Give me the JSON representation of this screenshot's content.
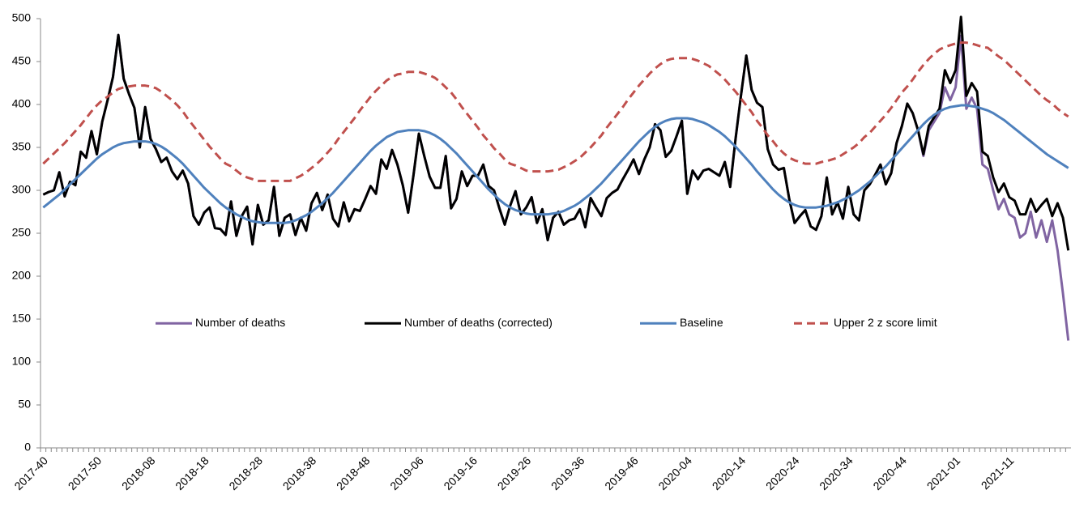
{
  "chart_data": {
    "type": "line",
    "categories": [
      "2017-40",
      null,
      null,
      null,
      null,
      null,
      null,
      null,
      null,
      null,
      "2017-50",
      null,
      null,
      null,
      null,
      null,
      null,
      null,
      null,
      null,
      "2018-08",
      null,
      null,
      null,
      null,
      null,
      null,
      null,
      null,
      null,
      "2018-18",
      null,
      null,
      null,
      null,
      null,
      null,
      null,
      null,
      null,
      "2018-28",
      null,
      null,
      null,
      null,
      null,
      null,
      null,
      null,
      null,
      "2018-38",
      null,
      null,
      null,
      null,
      null,
      null,
      null,
      null,
      null,
      "2018-48",
      null,
      null,
      null,
      null,
      null,
      null,
      null,
      null,
      null,
      "2019-06",
      null,
      null,
      null,
      null,
      null,
      null,
      null,
      null,
      null,
      "2019-16",
      null,
      null,
      null,
      null,
      null,
      null,
      null,
      null,
      null,
      "2019-26",
      null,
      null,
      null,
      null,
      null,
      null,
      null,
      null,
      null,
      "2019-36",
      null,
      null,
      null,
      null,
      null,
      null,
      null,
      null,
      null,
      "2019-46",
      null,
      null,
      null,
      null,
      null,
      null,
      null,
      null,
      null,
      "2020-04",
      null,
      null,
      null,
      null,
      null,
      null,
      null,
      null,
      null,
      "2020-14",
      null,
      null,
      null,
      null,
      null,
      null,
      null,
      null,
      null,
      "2020-24",
      null,
      null,
      null,
      null,
      null,
      null,
      null,
      null,
      null,
      "2020-34",
      null,
      null,
      null,
      null,
      null,
      null,
      null,
      null,
      null,
      "2020-44",
      null,
      null,
      null,
      null,
      null,
      null,
      null,
      null,
      null,
      "2021-01",
      null,
      null,
      null,
      null,
      null,
      null,
      null,
      null,
      null,
      "2021-11",
      null,
      null,
      null,
      null,
      null,
      null,
      null,
      null,
      null,
      null,
      null
    ],
    "series": [
      {
        "name": "Number of deaths",
        "color": "#8064a2",
        "style": "solid",
        "values": [
          295,
          298,
          300,
          321,
          293,
          310,
          306,
          345,
          338,
          369,
          342,
          380,
          405,
          432,
          481,
          430,
          412,
          396,
          350,
          397,
          360,
          348,
          333,
          338,
          322,
          313,
          323,
          308,
          270,
          260,
          274,
          280,
          256,
          255,
          248,
          287,
          247,
          270,
          281,
          237,
          283,
          260,
          265,
          304,
          247,
          268,
          272,
          248,
          268,
          253,
          285,
          297,
          277,
          295,
          267,
          258,
          286,
          264,
          278,
          276,
          290,
          305,
          296,
          336,
          325,
          347,
          330,
          306,
          274,
          318,
          366,
          340,
          316,
          303,
          303,
          340,
          279,
          290,
          322,
          305,
          317,
          317,
          330,
          305,
          300,
          279,
          260,
          282,
          299,
          272,
          280,
          292,
          262,
          278,
          242,
          268,
          275,
          260,
          265,
          267,
          278,
          257,
          291,
          280,
          270,
          291,
          297,
          301,
          313,
          324,
          336,
          319,
          336,
          350,
          377,
          370,
          339,
          346,
          363,
          381,
          296,
          323,
          313,
          323,
          325,
          321,
          317,
          333,
          304,
          360,
          410,
          457,
          417,
          402,
          397,
          348,
          330,
          324,
          326,
          290,
          262,
          270,
          277,
          258,
          254,
          270,
          315,
          272,
          286,
          267,
          304,
          272,
          265,
          300,
          307,
          318,
          330,
          307,
          320,
          355,
          375,
          401,
          390,
          370,
          340,
          370,
          380,
          390,
          420,
          405,
          420,
          480,
          395,
          408,
          395,
          330,
          325,
          300,
          278,
          290,
          272,
          268,
          245,
          250,
          275,
          245,
          265,
          240,
          265,
          230,
          180,
          125
        ]
      },
      {
        "name": "Number of deaths (corrected)",
        "color": "#000000",
        "style": "solid",
        "values": [
          295,
          298,
          300,
          321,
          293,
          310,
          306,
          345,
          338,
          369,
          342,
          380,
          405,
          432,
          481,
          430,
          412,
          396,
          350,
          397,
          360,
          348,
          333,
          338,
          322,
          313,
          323,
          308,
          270,
          260,
          274,
          280,
          256,
          255,
          248,
          287,
          247,
          270,
          281,
          237,
          283,
          260,
          265,
          304,
          247,
          268,
          272,
          248,
          268,
          253,
          285,
          297,
          277,
          295,
          267,
          258,
          286,
          264,
          278,
          276,
          290,
          305,
          296,
          336,
          325,
          347,
          330,
          306,
          274,
          318,
          366,
          340,
          316,
          303,
          303,
          340,
          279,
          290,
          322,
          305,
          317,
          317,
          330,
          305,
          300,
          279,
          260,
          282,
          299,
          272,
          280,
          292,
          262,
          278,
          242,
          268,
          275,
          260,
          265,
          267,
          278,
          257,
          291,
          280,
          270,
          291,
          297,
          301,
          313,
          324,
          336,
          319,
          336,
          350,
          377,
          370,
          339,
          346,
          363,
          381,
          296,
          323,
          313,
          323,
          325,
          321,
          317,
          333,
          304,
          360,
          410,
          457,
          417,
          402,
          397,
          348,
          330,
          324,
          326,
          290,
          262,
          270,
          277,
          258,
          254,
          270,
          315,
          272,
          286,
          267,
          304,
          272,
          265,
          300,
          307,
          318,
          330,
          307,
          320,
          355,
          375,
          401,
          390,
          370,
          342,
          375,
          385,
          395,
          440,
          425,
          440,
          502,
          410,
          425,
          415,
          345,
          340,
          315,
          298,
          308,
          292,
          288,
          272,
          272,
          290,
          275,
          283,
          290,
          270,
          285,
          268,
          230
        ]
      },
      {
        "name": "Baseline",
        "color": "#4f81bd",
        "style": "solid",
        "values": [
          280,
          285,
          290,
          295,
          301,
          307,
          313,
          319,
          325,
          331,
          337,
          342,
          346,
          350,
          353,
          355,
          356,
          357,
          357,
          357,
          356,
          354,
          351,
          347,
          342,
          337,
          331,
          324,
          317,
          310,
          303,
          297,
          291,
          285,
          280,
          276,
          272,
          269,
          266,
          264,
          263,
          262,
          262,
          262,
          262,
          262,
          263,
          265,
          268,
          271,
          275,
          280,
          285,
          291,
          297,
          304,
          311,
          318,
          325,
          332,
          339,
          346,
          352,
          357,
          362,
          365,
          368,
          369,
          370,
          370,
          370,
          369,
          367,
          364,
          360,
          355,
          349,
          343,
          336,
          329,
          322,
          315,
          308,
          301,
          295,
          289,
          284,
          280,
          277,
          275,
          273,
          272,
          272,
          272,
          272,
          273,
          274,
          276,
          279,
          282,
          286,
          291,
          296,
          302,
          308,
          315,
          322,
          329,
          336,
          343,
          350,
          357,
          363,
          369,
          374,
          378,
          381,
          383,
          384,
          384,
          384,
          383,
          381,
          379,
          376,
          372,
          368,
          363,
          357,
          351,
          344,
          337,
          330,
          322,
          315,
          308,
          301,
          295,
          290,
          286,
          283,
          281,
          280,
          280,
          280,
          281,
          282,
          284,
          286,
          289,
          292,
          296,
          300,
          305,
          310,
          316,
          322,
          328,
          335,
          342,
          349,
          356,
          363,
          370,
          377,
          383,
          388,
          392,
          395,
          397,
          398,
          399,
          399,
          398,
          397,
          395,
          393,
          390,
          386,
          382,
          377,
          372,
          367,
          362,
          357,
          352,
          347,
          342,
          338,
          334,
          330,
          326
        ]
      },
      {
        "name": "Upper 2 z score limit",
        "color": "#c0504d",
        "style": "dashed",
        "values": [
          331,
          337,
          343,
          349,
          355,
          362,
          369,
          376,
          384,
          392,
          399,
          405,
          409,
          414,
          418,
          420,
          421,
          422,
          422,
          422,
          421,
          419,
          415,
          410,
          405,
          399,
          392,
          383,
          375,
          367,
          359,
          351,
          344,
          337,
          331,
          328,
          323,
          318,
          315,
          313,
          311,
          311,
          311,
          311,
          311,
          311,
          311,
          314,
          317,
          321,
          326,
          331,
          337,
          344,
          351,
          360,
          368,
          376,
          384,
          393,
          401,
          409,
          416,
          422,
          428,
          432,
          435,
          436,
          438,
          438,
          438,
          436,
          434,
          431,
          426,
          420,
          414,
          406,
          397,
          389,
          381,
          373,
          364,
          357,
          349,
          343,
          336,
          331,
          329,
          326,
          323,
          322,
          322,
          322,
          322,
          323,
          324,
          327,
          330,
          334,
          338,
          344,
          350,
          357,
          364,
          373,
          381,
          389,
          397,
          406,
          414,
          422,
          429,
          436,
          442,
          447,
          451,
          453,
          454,
          454,
          454,
          453,
          451,
          448,
          445,
          440,
          435,
          429,
          422,
          415,
          407,
          399,
          391,
          381,
          373,
          364,
          357,
          349,
          343,
          338,
          335,
          333,
          331,
          331,
          331,
          333,
          334,
          336,
          338,
          342,
          346,
          350,
          355,
          362,
          367,
          374,
          381,
          388,
          396,
          405,
          414,
          421,
          429,
          438,
          446,
          453,
          459,
          464,
          467,
          469,
          471,
          472,
          472,
          471,
          469,
          467,
          466,
          461,
          456,
          452,
          446,
          440,
          434,
          428,
          422,
          416,
          410,
          405,
          401,
          395,
          390,
          386
        ]
      }
    ],
    "ylim": [
      0,
      500
    ],
    "yticks": [
      0,
      50,
      100,
      150,
      200,
      250,
      300,
      350,
      400,
      450,
      500
    ],
    "grid": false,
    "legend": "middle"
  }
}
